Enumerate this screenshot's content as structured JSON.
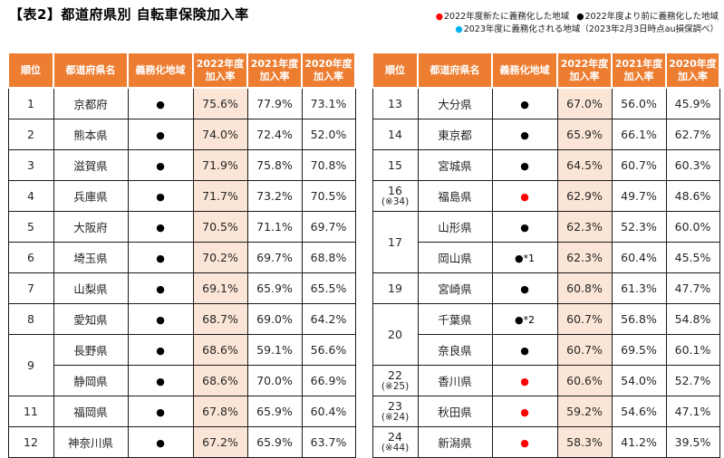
{
  "title": "【表2】都道府県別 自転車保険加入率",
  "legend": {
    "lines": [
      [
        {
          "dot": "red",
          "label": "2022年度新たに義務化した地域"
        },
        {
          "dot": "black",
          "label": "2022年度より前に義務化した地域"
        }
      ],
      [
        {
          "dot": "blue",
          "label": "2023年度に義務化される地域（2023年2月3日時点au損保調べ）"
        }
      ]
    ]
  },
  "colors": {
    "header_bg": "#ED7D31",
    "header_text": "#FFFFFF",
    "highlight_bg": "#FBE5D6",
    "red_dot": "#FF0000",
    "black_dot": "#000000",
    "blue_dot": "#00B0F0"
  },
  "columns": [
    {
      "label": "順位"
    },
    {
      "label": "都道府県名"
    },
    {
      "label": "義務化地域"
    },
    {
      "label": "2022年度",
      "label2": "加入率",
      "highlight": true
    },
    {
      "label": "2021年度",
      "label2": "加入率"
    },
    {
      "label": "2020年度",
      "label2": "加入率"
    }
  ],
  "tables": [
    {
      "rows": [
        {
          "rank": "1",
          "prefecture": "京都府",
          "mark_color": "black",
          "rates": [
            "75.6%",
            "77.9%",
            "73.1%"
          ]
        },
        {
          "rank": "2",
          "prefecture": "熊本県",
          "mark_color": "black",
          "rates": [
            "74.0%",
            "72.4%",
            "52.0%"
          ]
        },
        {
          "rank": "3",
          "prefecture": "滋賀県",
          "mark_color": "black",
          "rates": [
            "71.9%",
            "75.8%",
            "70.8%"
          ]
        },
        {
          "rank": "4",
          "prefecture": "兵庫県",
          "mark_color": "black",
          "rates": [
            "71.7%",
            "73.2%",
            "70.5%"
          ]
        },
        {
          "rank": "5",
          "prefecture": "大阪府",
          "mark_color": "black",
          "rates": [
            "70.5%",
            "71.1%",
            "69.7%"
          ]
        },
        {
          "rank": "6",
          "prefecture": "埼玉県",
          "mark_color": "black",
          "rates": [
            "70.2%",
            "69.7%",
            "68.8%"
          ]
        },
        {
          "rank": "7",
          "prefecture": "山梨県",
          "mark_color": "black",
          "rates": [
            "69.1%",
            "65.9%",
            "65.5%"
          ]
        },
        {
          "rank": "8",
          "prefecture": "愛知県",
          "mark_color": "black",
          "rates": [
            "68.7%",
            "69.0%",
            "64.2%"
          ]
        },
        {
          "rank": "9",
          "rank_span": 2,
          "prefecture": "長野県",
          "mark_color": "black",
          "rates": [
            "68.6%",
            "59.1%",
            "56.6%"
          ]
        },
        {
          "prefecture": "静岡県",
          "mark_color": "black",
          "rates": [
            "68.6%",
            "70.0%",
            "66.9%"
          ]
        },
        {
          "rank": "11",
          "prefecture": "福岡県",
          "mark_color": "black",
          "rates": [
            "67.8%",
            "65.9%",
            "60.4%"
          ]
        },
        {
          "rank": "12",
          "prefecture": "神奈川県",
          "mark_color": "black",
          "rates": [
            "67.2%",
            "65.9%",
            "63.7%"
          ]
        }
      ]
    },
    {
      "rows": [
        {
          "rank": "13",
          "prefecture": "大分県",
          "mark_color": "black",
          "rates": [
            "67.0%",
            "56.0%",
            "45.9%"
          ]
        },
        {
          "rank": "14",
          "prefecture": "東京都",
          "mark_color": "black",
          "rates": [
            "65.9%",
            "66.1%",
            "62.7%"
          ]
        },
        {
          "rank": "15",
          "prefecture": "宮城県",
          "mark_color": "black",
          "rates": [
            "64.5%",
            "60.7%",
            "60.3%"
          ]
        },
        {
          "rank": "16",
          "rank_note": "(※34)",
          "prefecture": "福島県",
          "mark_color": "red",
          "rates": [
            "62.9%",
            "49.7%",
            "48.6%"
          ]
        },
        {
          "rank": "17",
          "rank_span": 2,
          "prefecture": "山形県",
          "mark_color": "black",
          "rates": [
            "62.3%",
            "52.3%",
            "60.0%"
          ]
        },
        {
          "prefecture": "岡山県",
          "mark_color": "black",
          "mark_suffix": "*1",
          "rates": [
            "62.3%",
            "60.4%",
            "45.5%"
          ]
        },
        {
          "rank": "19",
          "prefecture": "宮崎県",
          "mark_color": "black",
          "rates": [
            "60.8%",
            "61.3%",
            "47.7%"
          ]
        },
        {
          "rank": "20",
          "rank_span": 2,
          "prefecture": "千葉県",
          "mark_color": "black",
          "mark_suffix": "*2",
          "rates": [
            "60.7%",
            "56.8%",
            "54.8%"
          ]
        },
        {
          "prefecture": "奈良県",
          "mark_color": "black",
          "rates": [
            "60.7%",
            "69.5%",
            "60.1%"
          ]
        },
        {
          "rank": "22",
          "rank_note": "(※25)",
          "prefecture": "香川県",
          "mark_color": "red",
          "rates": [
            "60.6%",
            "54.0%",
            "52.7%"
          ]
        },
        {
          "rank": "23",
          "rank_note": "(※24)",
          "prefecture": "秋田県",
          "mark_color": "red",
          "rates": [
            "59.2%",
            "54.6%",
            "47.1%"
          ]
        },
        {
          "rank": "24",
          "rank_note": "(※44)",
          "prefecture": "新潟県",
          "mark_color": "red",
          "rates": [
            "58.3%",
            "41.2%",
            "39.5%"
          ]
        }
      ]
    }
  ],
  "mark_glyph": "●",
  "rate_cell_names": [
    "rate-2022-cell",
    "rate-2021-cell",
    "rate-2020-cell"
  ]
}
